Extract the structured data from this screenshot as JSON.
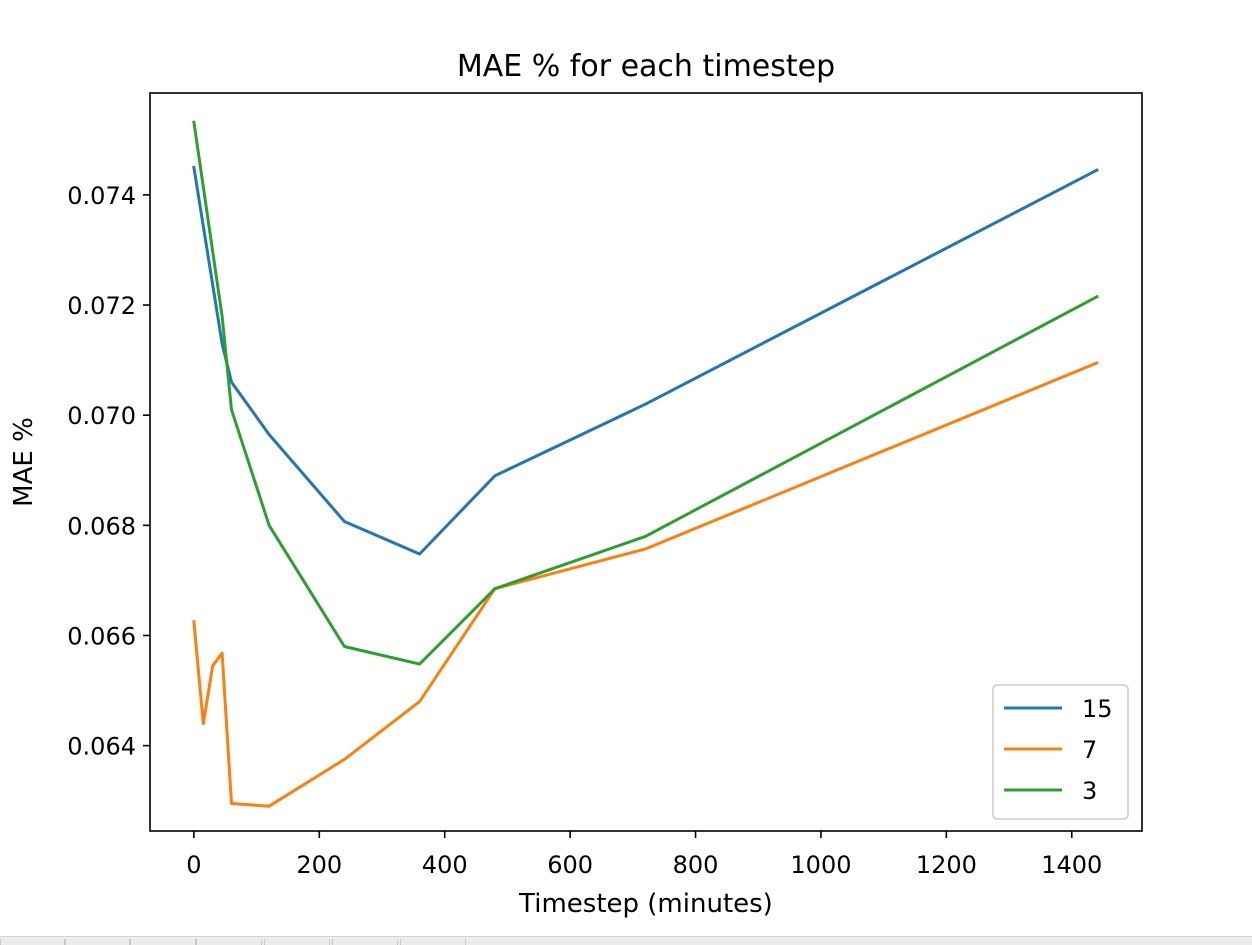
{
  "chart_data": {
    "type": "line",
    "title": "MAE % for each timestep",
    "xlabel": "Timestep (minutes)",
    "ylabel": "MAE %",
    "xlim": [
      -70,
      1512
    ],
    "ylim": [
      0.06245,
      0.07585
    ],
    "xticks": [
      0,
      200,
      400,
      600,
      800,
      1000,
      1200,
      1400
    ],
    "xtick_labels": [
      "0",
      "200",
      "400",
      "600",
      "800",
      "1000",
      "1200",
      "1400"
    ],
    "yticks": [
      0.064,
      0.066,
      0.068,
      0.07,
      0.072,
      0.074
    ],
    "ytick_labels": [
      "0.064",
      "0.066",
      "0.068",
      "0.070",
      "0.072",
      "0.074"
    ],
    "grid": false,
    "legend_position": "lower right",
    "series": [
      {
        "name": "15",
        "color": "#1f77b4",
        "x": [
          0,
          45,
          60,
          120,
          240,
          360,
          480,
          720,
          1440
        ],
        "y": [
          0.0745,
          0.0713,
          0.0706,
          0.06965,
          0.06807,
          0.06748,
          0.0689,
          0.0702,
          0.07445
        ]
      },
      {
        "name": "7",
        "color": "#ff7f0e",
        "x": [
          0,
          15,
          30,
          45,
          60,
          120,
          240,
          360,
          480,
          720,
          1440
        ],
        "y": [
          0.06625,
          0.0644,
          0.06545,
          0.06568,
          0.06295,
          0.0629,
          0.06375,
          0.0648,
          0.06685,
          0.06757,
          0.07095
        ]
      },
      {
        "name": "3",
        "color": "#2ca02c",
        "x": [
          0,
          45,
          60,
          120,
          240,
          360,
          480,
          720,
          1440
        ],
        "y": [
          0.07532,
          0.0718,
          0.0701,
          0.068,
          0.0658,
          0.06548,
          0.06685,
          0.0678,
          0.07215
        ]
      }
    ]
  }
}
